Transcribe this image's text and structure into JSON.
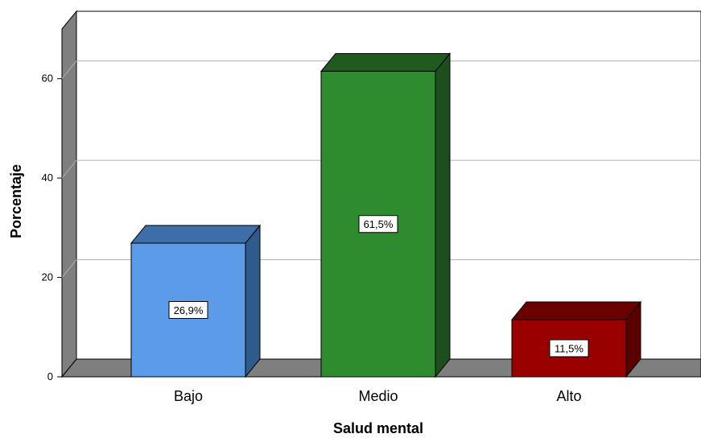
{
  "chart_data": {
    "type": "bar",
    "categories": [
      "Bajo",
      "Medio",
      "Alto"
    ],
    "values": [
      26.9,
      61.5,
      11.5
    ],
    "data_labels": [
      "26,9%",
      "61,5%",
      "11,5%"
    ],
    "xlabel": "Salud mental",
    "ylabel": "Porcentaje",
    "ylim": [
      0,
      70
    ],
    "yticks": [
      "0",
      "20",
      "40",
      "60"
    ],
    "grid": true,
    "style": "3d",
    "colors": [
      "#5b9be8",
      "#2e8b2e",
      "#990000"
    ],
    "side_colors": [
      "#2f5a8c",
      "#1e4d1e",
      "#5a0000"
    ],
    "top_colors": [
      "#3d6ea8",
      "#1f5a1f",
      "#6b0000"
    ]
  }
}
